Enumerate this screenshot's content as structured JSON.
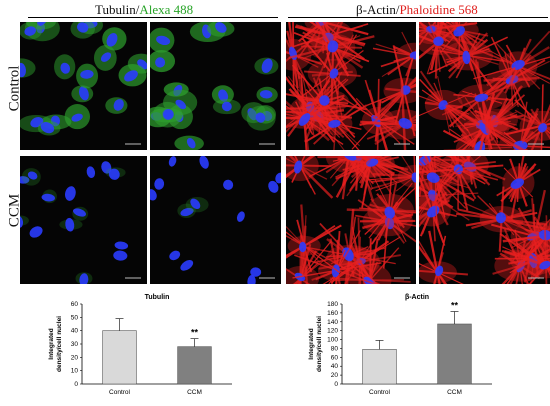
{
  "header": {
    "left_prefix": "Tubulin/",
    "left_marker": "Alexa 488",
    "right_prefix": "β-Actin/",
    "right_marker": "Phaloidine 568"
  },
  "rows": [
    "Control",
    "CCM"
  ],
  "colors": {
    "tubulin_stain": "#2ea02e",
    "actin_stain": "#e82020",
    "nuclei": "#2a3cff",
    "bar_control": "#d9d9d9",
    "bar_ccm": "#808080"
  },
  "chart_data": [
    {
      "type": "bar",
      "title": "Tubulin",
      "ylabel": "Integrated density/cell nuclei",
      "categories": [
        "Control",
        "CCM"
      ],
      "values": [
        40,
        28
      ],
      "errors": [
        9,
        6
      ],
      "significance": [
        "",
        "**"
      ],
      "ylim": [
        0,
        60
      ],
      "yticks": [
        0,
        10,
        20,
        30,
        40,
        50,
        60
      ]
    },
    {
      "type": "bar",
      "title": "β-Actin",
      "ylabel": "Integrated density/cell nuclei",
      "categories": [
        "Control",
        "CCM"
      ],
      "values": [
        78,
        135
      ],
      "errors": [
        20,
        28
      ],
      "significance": [
        "",
        "**"
      ],
      "ylim": [
        0,
        180
      ],
      "yticks": [
        0,
        20,
        40,
        60,
        80,
        100,
        120,
        140,
        160,
        180
      ]
    }
  ]
}
